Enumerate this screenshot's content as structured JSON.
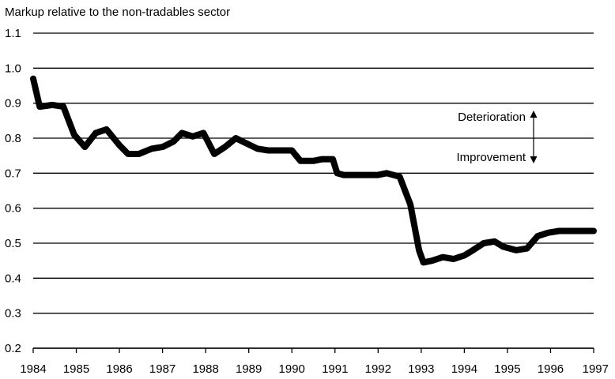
{
  "chart_data": {
    "type": "line",
    "title": "Markup relative to the non-tradables sector",
    "xlabel": "",
    "ylabel": "",
    "xlim": [
      1984,
      1997
    ],
    "ylim": [
      0.2,
      1.1
    ],
    "grid": true,
    "yticks": [
      "0.2",
      "0.3",
      "0.4",
      "0.5",
      "0.6",
      "0.7",
      "0.8",
      "0.9",
      "1.0",
      "1.1"
    ],
    "xticks": [
      "1984",
      "1985",
      "1986",
      "1987",
      "1988",
      "1989",
      "1990",
      "1991",
      "1992",
      "1993",
      "1994",
      "1995",
      "1996",
      "1997"
    ],
    "series": [
      {
        "x": [
          1984.0,
          1984.15,
          1984.45,
          1984.7,
          1984.95,
          1985.2,
          1985.45,
          1985.7,
          1986.0,
          1986.2,
          1986.45,
          1986.75,
          1987.0,
          1987.25,
          1987.45,
          1987.7,
          1987.95,
          1988.2,
          1988.45,
          1988.7,
          1988.95,
          1989.2,
          1989.45,
          1989.75,
          1990.0,
          1990.2,
          1990.5,
          1990.7,
          1990.95,
          1991.05,
          1991.2,
          1991.5,
          1991.75,
          1992.0,
          1992.2,
          1992.5,
          1992.75,
          1992.95,
          1993.05,
          1993.25,
          1993.5,
          1993.75,
          1994.0,
          1994.2,
          1994.45,
          1994.7,
          1994.9,
          1995.2,
          1995.45,
          1995.7,
          1995.95,
          1996.2,
          1996.45,
          1996.7,
          1996.95,
          1997.0
        ],
        "values": [
          0.97,
          0.89,
          0.895,
          0.89,
          0.81,
          0.775,
          0.815,
          0.825,
          0.78,
          0.755,
          0.755,
          0.77,
          0.775,
          0.79,
          0.815,
          0.805,
          0.815,
          0.755,
          0.775,
          0.8,
          0.785,
          0.77,
          0.765,
          0.765,
          0.765,
          0.735,
          0.735,
          0.74,
          0.74,
          0.7,
          0.695,
          0.695,
          0.695,
          0.695,
          0.7,
          0.69,
          0.61,
          0.48,
          0.445,
          0.45,
          0.46,
          0.455,
          0.465,
          0.48,
          0.5,
          0.505,
          0.49,
          0.48,
          0.485,
          0.52,
          0.53,
          0.535,
          0.535,
          0.535,
          0.535,
          0.535
        ]
      }
    ],
    "annotations": {
      "deterioration": "Deterioration",
      "improvement": "Improvement"
    }
  }
}
